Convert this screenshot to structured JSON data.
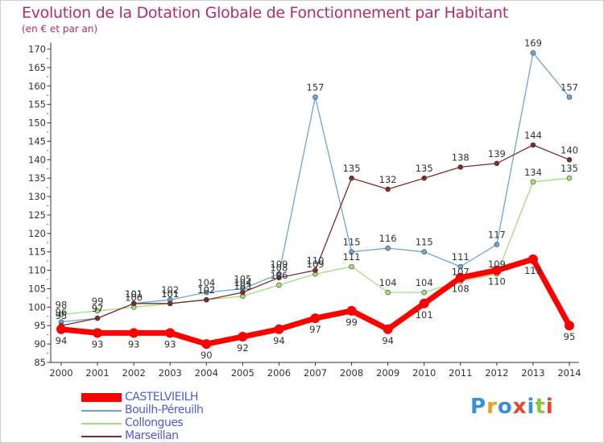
{
  "chart_data": {
    "type": "line",
    "title": "Evolution de la Dotation Globale de Fonctionnement par Habitant",
    "subtitle": "(en € et par an)",
    "xlabel": "",
    "ylabel": "",
    "x": [
      "2000",
      "2001",
      "2002",
      "2003",
      "2004",
      "2005",
      "2006",
      "2007",
      "2008",
      "2009",
      "2010",
      "2011",
      "2012",
      "2013",
      "2014"
    ],
    "ylim": [
      85,
      170
    ],
    "yticks": [
      85,
      90,
      95,
      100,
      105,
      110,
      115,
      120,
      125,
      130,
      135,
      140,
      145,
      150,
      155,
      160,
      165,
      170
    ],
    "grid": false,
    "legend_position": "bottom-left",
    "series": [
      {
        "name": "CASTELVIEILH",
        "color": "#ff0000",
        "values": [
          94,
          93,
          93,
          93,
          90,
          92,
          94,
          97,
          99,
          94,
          101,
          108,
          110,
          113,
          95
        ]
      },
      {
        "name": "Bouilh-Péreuilh",
        "color": "#6fa3d3",
        "values": [
          96,
          97,
          101,
          102,
          104,
          105,
          109,
          157,
          115,
          116,
          115,
          111,
          117,
          169,
          157
        ]
      },
      {
        "name": "Collongues",
        "color": "#a6dc7a",
        "values": [
          98,
          99,
          100,
          101,
          102,
          103,
          106,
          109,
          111,
          104,
          104,
          107,
          109,
          134,
          135
        ]
      },
      {
        "name": "Marseillan",
        "color": "#7a2c2c",
        "values": [
          95,
          97,
          101,
          101,
          102,
          104,
          108,
          110,
          135,
          132,
          135,
          138,
          139,
          144,
          140
        ]
      }
    ]
  },
  "logo": {
    "letters": [
      "P",
      "r",
      "o",
      "x",
      "i",
      "t",
      "i"
    ],
    "colors": [
      "#3a8fd6",
      "#f29a1d",
      "#3a8fd6",
      "#e8462c",
      "#3a8fd6",
      "#8cc63f",
      "#e8462c"
    ]
  }
}
